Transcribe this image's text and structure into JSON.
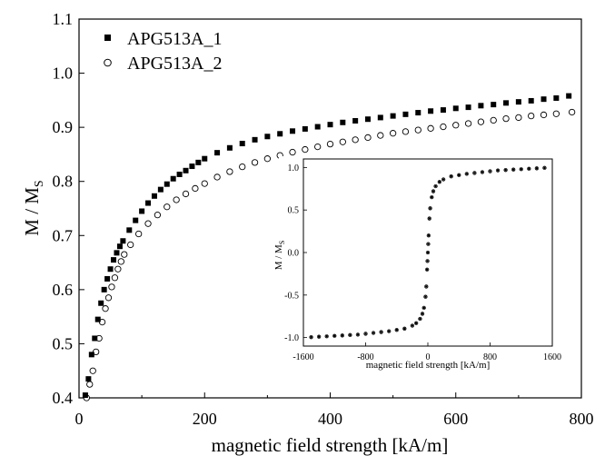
{
  "chart_data": [
    {
      "type": "scatter",
      "xlabel": "magnetic field strength [kA/m]",
      "ylabel": "M / M",
      "ylabel_sub": "S",
      "xlim": [
        0,
        800
      ],
      "ylim": [
        0.4,
        1.1
      ],
      "x_ticks": [
        "0",
        "200",
        "400",
        "600",
        "800"
      ],
      "y_ticks": [
        "0.4",
        "0.5",
        "0.6",
        "0.7",
        "0.8",
        "0.9",
        "1.0",
        "1.1"
      ],
      "legend_position": "top-left",
      "series": [
        {
          "name": "APG513A_1",
          "marker": "filled-square",
          "color": "#000000",
          "x": [
            10,
            15,
            20,
            25,
            30,
            35,
            40,
            45,
            50,
            55,
            60,
            65,
            70,
            80,
            90,
            100,
            110,
            120,
            130,
            140,
            150,
            160,
            170,
            180,
            190,
            200,
            220,
            240,
            260,
            280,
            300,
            320,
            340,
            360,
            380,
            400,
            420,
            440,
            460,
            480,
            500,
            520,
            540,
            560,
            580,
            600,
            620,
            640,
            660,
            680,
            700,
            720,
            740,
            760,
            780
          ],
          "y": [
            0.405,
            0.435,
            0.48,
            0.51,
            0.545,
            0.575,
            0.6,
            0.62,
            0.638,
            0.655,
            0.668,
            0.68,
            0.69,
            0.71,
            0.728,
            0.745,
            0.76,
            0.773,
            0.785,
            0.795,
            0.805,
            0.813,
            0.82,
            0.828,
            0.835,
            0.842,
            0.853,
            0.862,
            0.87,
            0.877,
            0.883,
            0.888,
            0.893,
            0.897,
            0.901,
            0.905,
            0.909,
            0.912,
            0.915,
            0.918,
            0.921,
            0.924,
            0.927,
            0.93,
            0.932,
            0.935,
            0.937,
            0.94,
            0.942,
            0.945,
            0.947,
            0.949,
            0.952,
            0.954,
            0.958
          ]
        },
        {
          "name": "APG513A_2",
          "marker": "open-circle",
          "color": "#000000",
          "x": [
            12,
            17,
            22,
            27,
            32,
            37,
            42,
            47,
            52,
            57,
            62,
            67,
            72,
            82,
            95,
            110,
            125,
            140,
            155,
            170,
            185,
            200,
            220,
            240,
            260,
            280,
            300,
            320,
            340,
            360,
            380,
            400,
            420,
            440,
            460,
            480,
            500,
            520,
            540,
            560,
            580,
            600,
            620,
            640,
            660,
            680,
            700,
            720,
            740,
            760,
            785
          ],
          "y": [
            0.4,
            0.425,
            0.45,
            0.485,
            0.51,
            0.54,
            0.565,
            0.585,
            0.605,
            0.622,
            0.638,
            0.652,
            0.665,
            0.683,
            0.703,
            0.722,
            0.738,
            0.753,
            0.766,
            0.777,
            0.787,
            0.796,
            0.808,
            0.818,
            0.827,
            0.835,
            0.842,
            0.848,
            0.854,
            0.859,
            0.864,
            0.869,
            0.873,
            0.877,
            0.881,
            0.885,
            0.889,
            0.892,
            0.895,
            0.898,
            0.901,
            0.904,
            0.907,
            0.91,
            0.913,
            0.916,
            0.918,
            0.921,
            0.923,
            0.925,
            0.928
          ]
        }
      ]
    },
    {
      "type": "line",
      "xlabel": "magnetic field strength [kA/m]",
      "ylabel": "M / M",
      "ylabel_sub": "S",
      "xlim": [
        -1600,
        1600
      ],
      "ylim": [
        -1.1,
        1.1
      ],
      "x_ticks": [
        "-1600",
        "-800",
        "0",
        "800",
        "1600"
      ],
      "y_ticks": [
        "-1.0",
        "-0.5",
        "0.0",
        "0.5",
        "1.0"
      ],
      "series": [
        {
          "marker": "overlapping-squares-and-circles",
          "x": [
            -1500,
            -1400,
            -1300,
            -1200,
            -1100,
            -1000,
            -900,
            -800,
            -700,
            -600,
            -500,
            -400,
            -300,
            -200,
            -150,
            -100,
            -70,
            -50,
            -30,
            -20,
            -10,
            -5,
            0,
            5,
            10,
            20,
            30,
            50,
            70,
            100,
            150,
            200,
            300,
            400,
            500,
            600,
            700,
            800,
            900,
            1000,
            1100,
            1200,
            1300,
            1400,
            1500
          ],
          "y": [
            -0.995,
            -0.99,
            -0.985,
            -0.98,
            -0.975,
            -0.97,
            -0.965,
            -0.955,
            -0.945,
            -0.935,
            -0.925,
            -0.91,
            -0.895,
            -0.86,
            -0.83,
            -0.78,
            -0.72,
            -0.65,
            -0.52,
            -0.4,
            -0.2,
            -0.1,
            0.0,
            0.1,
            0.2,
            0.4,
            0.52,
            0.65,
            0.72,
            0.78,
            0.83,
            0.86,
            0.895,
            0.91,
            0.925,
            0.935,
            0.945,
            0.955,
            0.965,
            0.97,
            0.975,
            0.98,
            0.985,
            0.99,
            0.995
          ]
        }
      ]
    }
  ]
}
